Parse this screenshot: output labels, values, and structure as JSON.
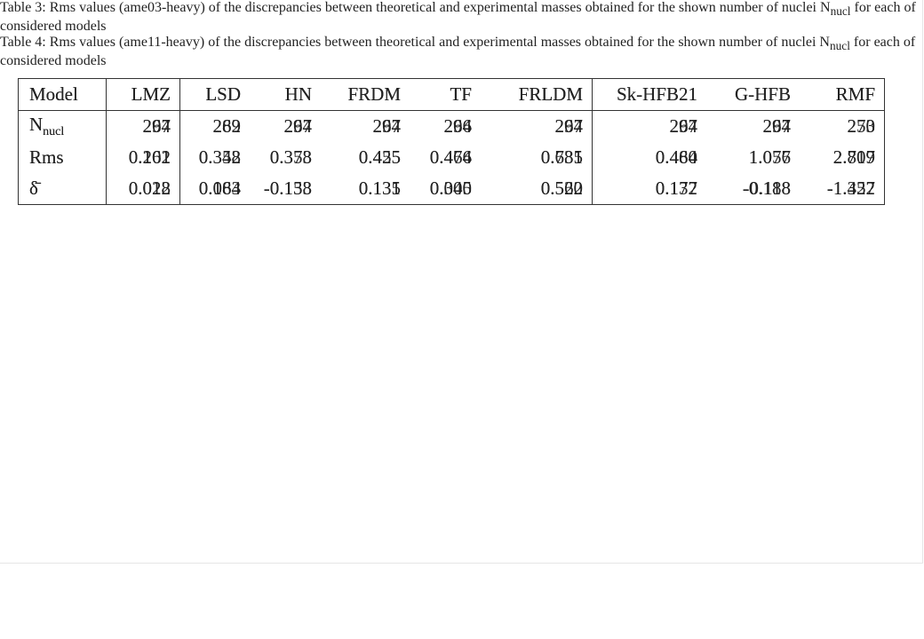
{
  "tables": [
    {
      "caption": {
        "label": "Table 3:",
        "text": "Rms values (ame03-heavy) of the discrepancies between theoretical and experimental masses obtained for the shown number of nuclei N",
        "subscript": "nucl",
        "text_after": "for each of considered models"
      },
      "columns": [
        "Model",
        "LMZ",
        "LSD",
        "HN",
        "FRDM",
        "TF",
        "FRLDM",
        "Sk-HFB21",
        "G-HFB",
        "RMF"
      ],
      "rows": [
        {
          "label": "N",
          "subscript": "nucl",
          "values": [
            "264",
            "262",
            "264",
            "264",
            "264",
            "264",
            "264",
            "264",
            "250"
          ]
        },
        {
          "label": "Rms",
          "values": [
            "0.161",
            "0.348",
            "0.373",
            "0.425",
            "0.464",
            "0.685",
            "0.460",
            "1.076",
            "2.809"
          ]
        },
        {
          "label": "δ̄",
          "values": [
            "0.012",
            "0.084",
            "-0.158",
            "0.135",
            "0.005",
            "0.520",
            "0.177",
            "-0.188",
            "-1.457"
          ]
        }
      ]
    },
    {
      "caption": {
        "label": "Table 4:",
        "text": "Rms values (ame11-heavy) of the discrepancies between theoretical and experimental masses obtained for the shown number of nuclei N",
        "subscript": "nucl",
        "text_after": "for each of considered models"
      },
      "columns": [
        "Model",
        "LMZ",
        "LSD",
        "HN",
        "FRDM",
        "TF",
        "FRLDM",
        "Sk-HFB21",
        "G-HFB",
        "RMF"
      ],
      "rows": [
        {
          "label": "N",
          "subscript": "nucl",
          "values": [
            "297",
            "289",
            "297",
            "297",
            "296",
            "297",
            "297",
            "297",
            "273"
          ]
        },
        {
          "label": "Rms",
          "values": [
            "0.202",
            "0.352",
            "0.358",
            "0.455",
            "0.476",
            "0.731",
            "0.484",
            "1.057",
            "2.717"
          ]
        },
        {
          "label": "δ̄",
          "values": [
            "0.028",
            "0.163",
            "-0.133",
            "0.131",
            "0.340",
            "0.562",
            "0.132",
            "-0.118",
            "-1.322"
          ]
        }
      ]
    }
  ]
}
